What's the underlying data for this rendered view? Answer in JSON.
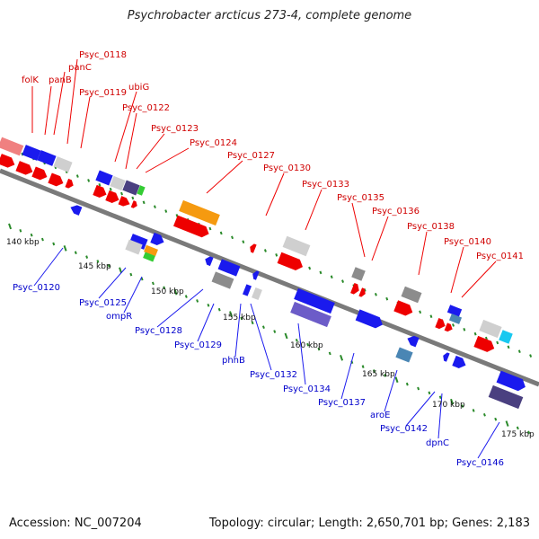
{
  "title": "Psychrobacter arcticus 273-4, complete genome",
  "accession": "Accession: NC_007204",
  "topology": "Topology: circular; Length: 2,650,701 bp; Genes: 2,183",
  "ruler": [
    "140 kbp",
    "145 kbp",
    "150 kbp",
    "155 kbp",
    "160 kbp",
    "165 kbp",
    "170 kbp",
    "175 kbp"
  ],
  "top_labels": [
    "folK",
    "panB",
    "panC",
    "Psyc_0118",
    "Psyc_0119",
    "ubiG",
    "Psyc_0122",
    "Psyc_0123",
    "Psyc_0124",
    "Psyc_0127",
    "Psyc_0130",
    "Psyc_0133",
    "Psyc_0135",
    "Psyc_0136",
    "Psyc_0138",
    "Psyc_0140",
    "Psyc_0141"
  ],
  "bottom_labels": [
    "Psyc_0120",
    "Psyc_0125",
    "ompR",
    "Psyc_0128",
    "Psyc_0129",
    "phhB",
    "Psyc_0132",
    "Psyc_0134",
    "Psyc_0137",
    "aroE",
    "Psyc_0142",
    "dpnC",
    "Psyc_0146"
  ],
  "colors": {
    "backbone": "#7a7a7a",
    "tick": "#2a8a2a",
    "red": "#ee0000",
    "blue": "#1a1aee",
    "grey": "#8c8c8c",
    "lightgrey": "#cfcfcf",
    "orange": "#f59a10",
    "green": "#33cc33",
    "pink": "#f08080",
    "purple": "#6c5cc8",
    "darkpurple": "#4a4080",
    "steel": "#4a86b4",
    "cyan": "#18c8f0"
  }
}
